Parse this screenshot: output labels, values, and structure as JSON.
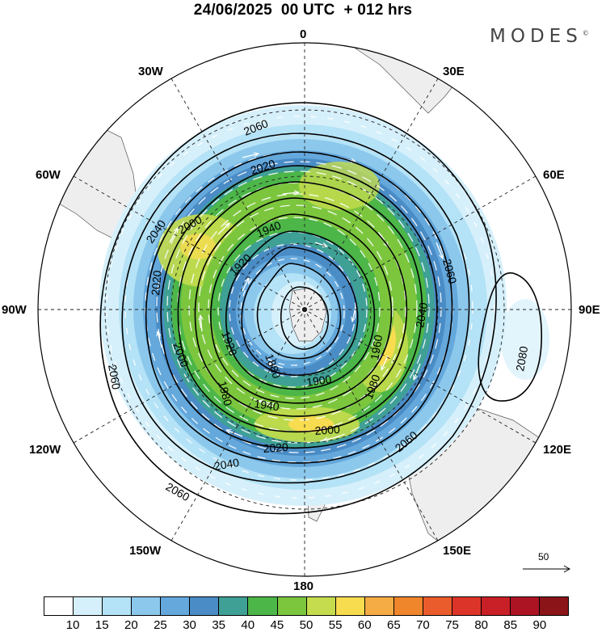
{
  "title": "24/06/2025  00 UTC  + 012 hrs",
  "brand": "MODES",
  "brand_mark": "©",
  "longitude_labels": {
    "n0": "0",
    "n30w": "30W",
    "n30e": "30E",
    "n60w": "60W",
    "n60e": "60E",
    "n90w": "90W",
    "n90e": "90E",
    "n120w": "120W",
    "n120e": "120E",
    "n150w": "150W",
    "n150e": "150E",
    "n180": "180"
  },
  "contour_labels": [
    {
      "name": "c2060-top",
      "text": "2060"
    },
    {
      "name": "c2020-top",
      "text": "2020"
    },
    {
      "name": "c2000-left",
      "text": "2000"
    },
    {
      "name": "c2040-left",
      "text": "2040"
    },
    {
      "name": "c2020-left",
      "text": "2020"
    },
    {
      "name": "c1940-top",
      "text": "1940"
    },
    {
      "name": "c1920-top",
      "text": "1920"
    },
    {
      "name": "c2060-right",
      "text": "2060"
    },
    {
      "name": "c2040-right",
      "text": "2040"
    },
    {
      "name": "c1960-right",
      "text": "1960"
    },
    {
      "name": "c1980-right",
      "text": "1980"
    },
    {
      "name": "c1900-bottom",
      "text": "1900"
    },
    {
      "name": "c1940-bottom",
      "text": "1940"
    },
    {
      "name": "c2000-bottom",
      "text": "2000"
    },
    {
      "name": "c2020-bottom",
      "text": "2020"
    },
    {
      "name": "c2060-bottom-right",
      "text": "2060"
    },
    {
      "name": "c2040-bottom",
      "text": "2040"
    },
    {
      "name": "c2060-bottom-left",
      "text": "2060"
    },
    {
      "name": "c2060-far-left",
      "text": "2060"
    },
    {
      "name": "c2000-inner-left",
      "text": "2000"
    },
    {
      "name": "c1920-inner",
      "text": "1920"
    },
    {
      "name": "c1880-inner",
      "text": "1880"
    },
    {
      "name": "c1980-inner",
      "text": "1980"
    },
    {
      "name": "c2080-high",
      "text": "2080"
    }
  ],
  "wind_reference": {
    "label": "50"
  },
  "colorbar": {
    "colors": [
      "#ffffff",
      "#d6f0fb",
      "#b4e2f6",
      "#8cc8ec",
      "#64a8dc",
      "#4a8cc6",
      "#3fa096",
      "#4cb648",
      "#7cc63e",
      "#c4dc4e",
      "#f8dc50",
      "#f6ac44",
      "#f0862c",
      "#ea5c2c",
      "#dc3428",
      "#c82026",
      "#ac1424",
      "#8a1418"
    ],
    "ticks": [
      "10",
      "15",
      "20",
      "25",
      "30",
      "35",
      "40",
      "45",
      "50",
      "55",
      "60",
      "65",
      "70",
      "75",
      "80",
      "85",
      "90"
    ]
  }
}
